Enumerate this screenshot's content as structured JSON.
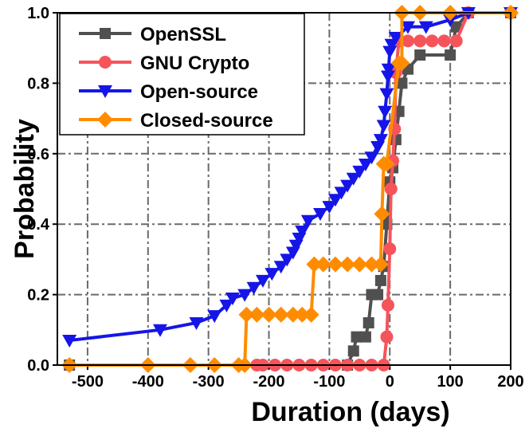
{
  "chart_data": {
    "type": "line",
    "xlabel": "Duration (days)",
    "ylabel": "Probability",
    "xlim": [
      -550,
      200
    ],
    "ylim": [
      0,
      1
    ],
    "xticks": [
      -500,
      -400,
      -300,
      -200,
      -100,
      0,
      100,
      200
    ],
    "yticks": [
      {
        "value": 0,
        "label": "0.0"
      },
      0.2,
      0.4,
      0.6,
      0.8,
      {
        "value": 1,
        "label": "1.0"
      }
    ],
    "grid": true,
    "legend": "upper left",
    "series": [
      {
        "name": "OpenSSL",
        "color": "#505050",
        "marker": "square",
        "x": [
          -530,
          -70,
          -60,
          -55,
          -40,
          -35,
          -30,
          -20,
          -15,
          -10,
          -5,
          0,
          5,
          10,
          15,
          20,
          30,
          50,
          100,
          110,
          130,
          200
        ],
        "values": [
          0,
          0,
          0.04,
          0.08,
          0.08,
          0.12,
          0.2,
          0.2,
          0.24,
          0.28,
          0.4,
          0.52,
          0.56,
          0.64,
          0.72,
          0.8,
          0.84,
          0.88,
          0.88,
          0.96,
          1.0,
          1.0
        ]
      },
      {
        "name": "GNU Crypto",
        "color": "#f5545a",
        "marker": "circle",
        "x": [
          -220,
          -210,
          -190,
          -170,
          -150,
          -130,
          -110,
          -90,
          -70,
          -50,
          -30,
          -10,
          -5,
          -3,
          0,
          2,
          5,
          8,
          10,
          15,
          30,
          50,
          70,
          90,
          110,
          130,
          200
        ],
        "values": [
          0,
          0,
          0,
          0,
          0,
          0,
          0,
          0,
          0,
          0,
          0,
          0,
          0.08,
          0.17,
          0.33,
          0.5,
          0.58,
          0.67,
          0.83,
          0.92,
          0.92,
          0.92,
          0.92,
          0.92,
          0.92,
          1.0,
          1.0
        ]
      },
      {
        "name": "Open-source",
        "color": "#1515e8",
        "marker": "triangle-down",
        "x": [
          -530,
          -380,
          -320,
          -290,
          -270,
          -260,
          -240,
          -225,
          -210,
          -195,
          -180,
          -170,
          -160,
          -155,
          -150,
          -145,
          -135,
          -115,
          -100,
          -90,
          -80,
          -70,
          -60,
          -50,
          -40,
          -30,
          -20,
          -15,
          -10,
          -8,
          -5,
          -3,
          -2,
          0,
          3,
          10,
          30,
          60,
          100,
          130,
          200
        ],
        "values": [
          0.07,
          0.1,
          0.12,
          0.14,
          0.17,
          0.19,
          0.2,
          0.22,
          0.24,
          0.26,
          0.28,
          0.3,
          0.32,
          0.34,
          0.36,
          0.38,
          0.41,
          0.43,
          0.45,
          0.47,
          0.49,
          0.51,
          0.53,
          0.55,
          0.57,
          0.59,
          0.62,
          0.64,
          0.68,
          0.72,
          0.77,
          0.82,
          0.84,
          0.89,
          0.91,
          0.93,
          0.96,
          0.96,
          0.98,
          1.0,
          1.0
        ]
      },
      {
        "name": "Closed-source",
        "color": "#ff8c00",
        "marker": "diamond",
        "x": [
          -530,
          -400,
          -330,
          -290,
          -250,
          -240,
          -237,
          -220,
          -200,
          -180,
          -160,
          -145,
          -130,
          -125,
          -110,
          -90,
          -70,
          -50,
          -30,
          -15,
          -13,
          -10,
          -5,
          15,
          20,
          20,
          50,
          100,
          200
        ],
        "values": [
          0,
          0,
          0,
          0,
          0,
          0,
          0.143,
          0.143,
          0.143,
          0.143,
          0.143,
          0.143,
          0.143,
          0.286,
          0.286,
          0.286,
          0.286,
          0.286,
          0.286,
          0.286,
          0.429,
          0.571,
          0.571,
          0.857,
          0.857,
          1.0,
          1.0,
          1.0,
          1.0
        ]
      }
    ]
  }
}
